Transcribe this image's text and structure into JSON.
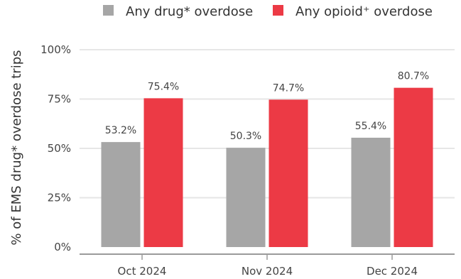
{
  "chart_data": {
    "type": "bar",
    "categories": [
      "Oct 2024",
      "Nov 2024",
      "Dec 2024"
    ],
    "series": [
      {
        "name": "Any drug* overdose",
        "color": "#a6a6a6",
        "values": [
          53.2,
          50.3,
          55.4
        ],
        "labels": [
          "53.2%",
          "50.3%",
          "55.4%"
        ]
      },
      {
        "name": "Any opioid⁺ overdose",
        "color": "#ec3a45",
        "values": [
          75.4,
          74.7,
          80.7
        ],
        "labels": [
          "75.4%",
          "74.7%",
          "80.7%"
        ]
      }
    ],
    "ylabel": "% of EMS drug* overdose trips",
    "ylim": [
      0,
      100
    ],
    "yticks": [
      0,
      25,
      50,
      75,
      100
    ],
    "ytick_labels": [
      "0%",
      "25%",
      "50%",
      "75%",
      "100%"
    ],
    "legend_position": "top",
    "grid": true
  }
}
